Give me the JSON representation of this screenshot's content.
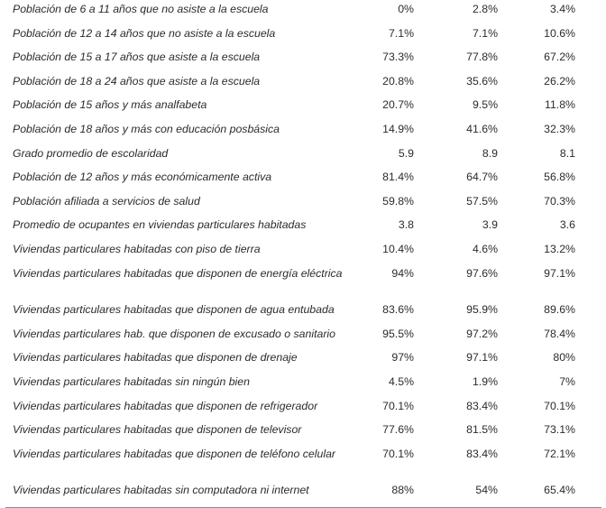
{
  "rows": [
    {
      "label": "Población de 6 a 11 años que no asiste a la escuela",
      "values": [
        "0%",
        "2.8%",
        "3.4%"
      ]
    },
    {
      "label": "Población de 12 a 14 años que no asiste a la escuela",
      "values": [
        "7.1%",
        "7.1%",
        "10.6%"
      ]
    },
    {
      "label": "Población de 15 a 17 años que asiste a la escuela",
      "values": [
        "73.3%",
        "77.8%",
        "67.2%"
      ]
    },
    {
      "label": "Población de 18 a 24 años que asiste a la escuela",
      "values": [
        "20.8%",
        "35.6%",
        "26.2%"
      ]
    },
    {
      "label": "Población de 15 años y más analfabeta",
      "values": [
        "20.7%",
        "9.5%",
        "11.8%"
      ]
    },
    {
      "label": "Población de 18 años y más con educación posbásica",
      "values": [
        "14.9%",
        "41.6%",
        "32.3%"
      ]
    },
    {
      "label": "Grado promedio de escolaridad",
      "values": [
        "5.9",
        "8.9",
        "8.1"
      ]
    },
    {
      "label": "Población de 12 años y más económicamente activa",
      "values": [
        "81.4%",
        "64.7%",
        "56.8%"
      ]
    },
    {
      "label": "Población afiliada a servicios de salud",
      "values": [
        "59.8%",
        "57.5%",
        "70.3%"
      ]
    },
    {
      "label": "Promedio de ocupantes en viviendas particulares habitadas",
      "values": [
        "3.8",
        "3.9",
        "3.6"
      ]
    },
    {
      "label": "Viviendas particulares habitadas con piso de tierra",
      "values": [
        "10.4%",
        "4.6%",
        "13.2%"
      ]
    },
    {
      "label": "Viviendas particulares habitadas que disponen de energía eléctrica",
      "values": [
        "94%",
        "97.6%",
        "97.1%"
      ]
    },
    {
      "label": "Viviendas particulares habitadas que disponen de agua entubada",
      "values": [
        "83.6%",
        "95.9%",
        "89.6%"
      ]
    },
    {
      "label": "Viviendas particulares hab. que disponen de excusado o sanitario",
      "values": [
        "95.5%",
        "97.2%",
        "78.4%"
      ]
    },
    {
      "label": "Viviendas particulares habitadas que disponen de drenaje",
      "values": [
        "97%",
        "97.1%",
        "80%"
      ]
    },
    {
      "label": "Viviendas particulares habitadas sin ningún bien",
      "values": [
        "4.5%",
        "1.9%",
        "7%"
      ]
    },
    {
      "label": "Viviendas particulares habitadas que disponen de refrigerador",
      "values": [
        "70.1%",
        "83.4%",
        "70.1%"
      ]
    },
    {
      "label": "Viviendas particulares habitadas que disponen de televisor",
      "values": [
        "77.6%",
        "81.5%",
        "73.1%"
      ]
    },
    {
      "label": "Viviendas particulares habitadas que disponen de teléfono celular",
      "values": [
        "70.1%",
        "83.4%",
        "72.1%"
      ]
    },
    {
      "label": "Viviendas particulares habitadas sin computadora ni internet",
      "values": [
        "88%",
        "54%",
        "65.4%"
      ]
    }
  ]
}
